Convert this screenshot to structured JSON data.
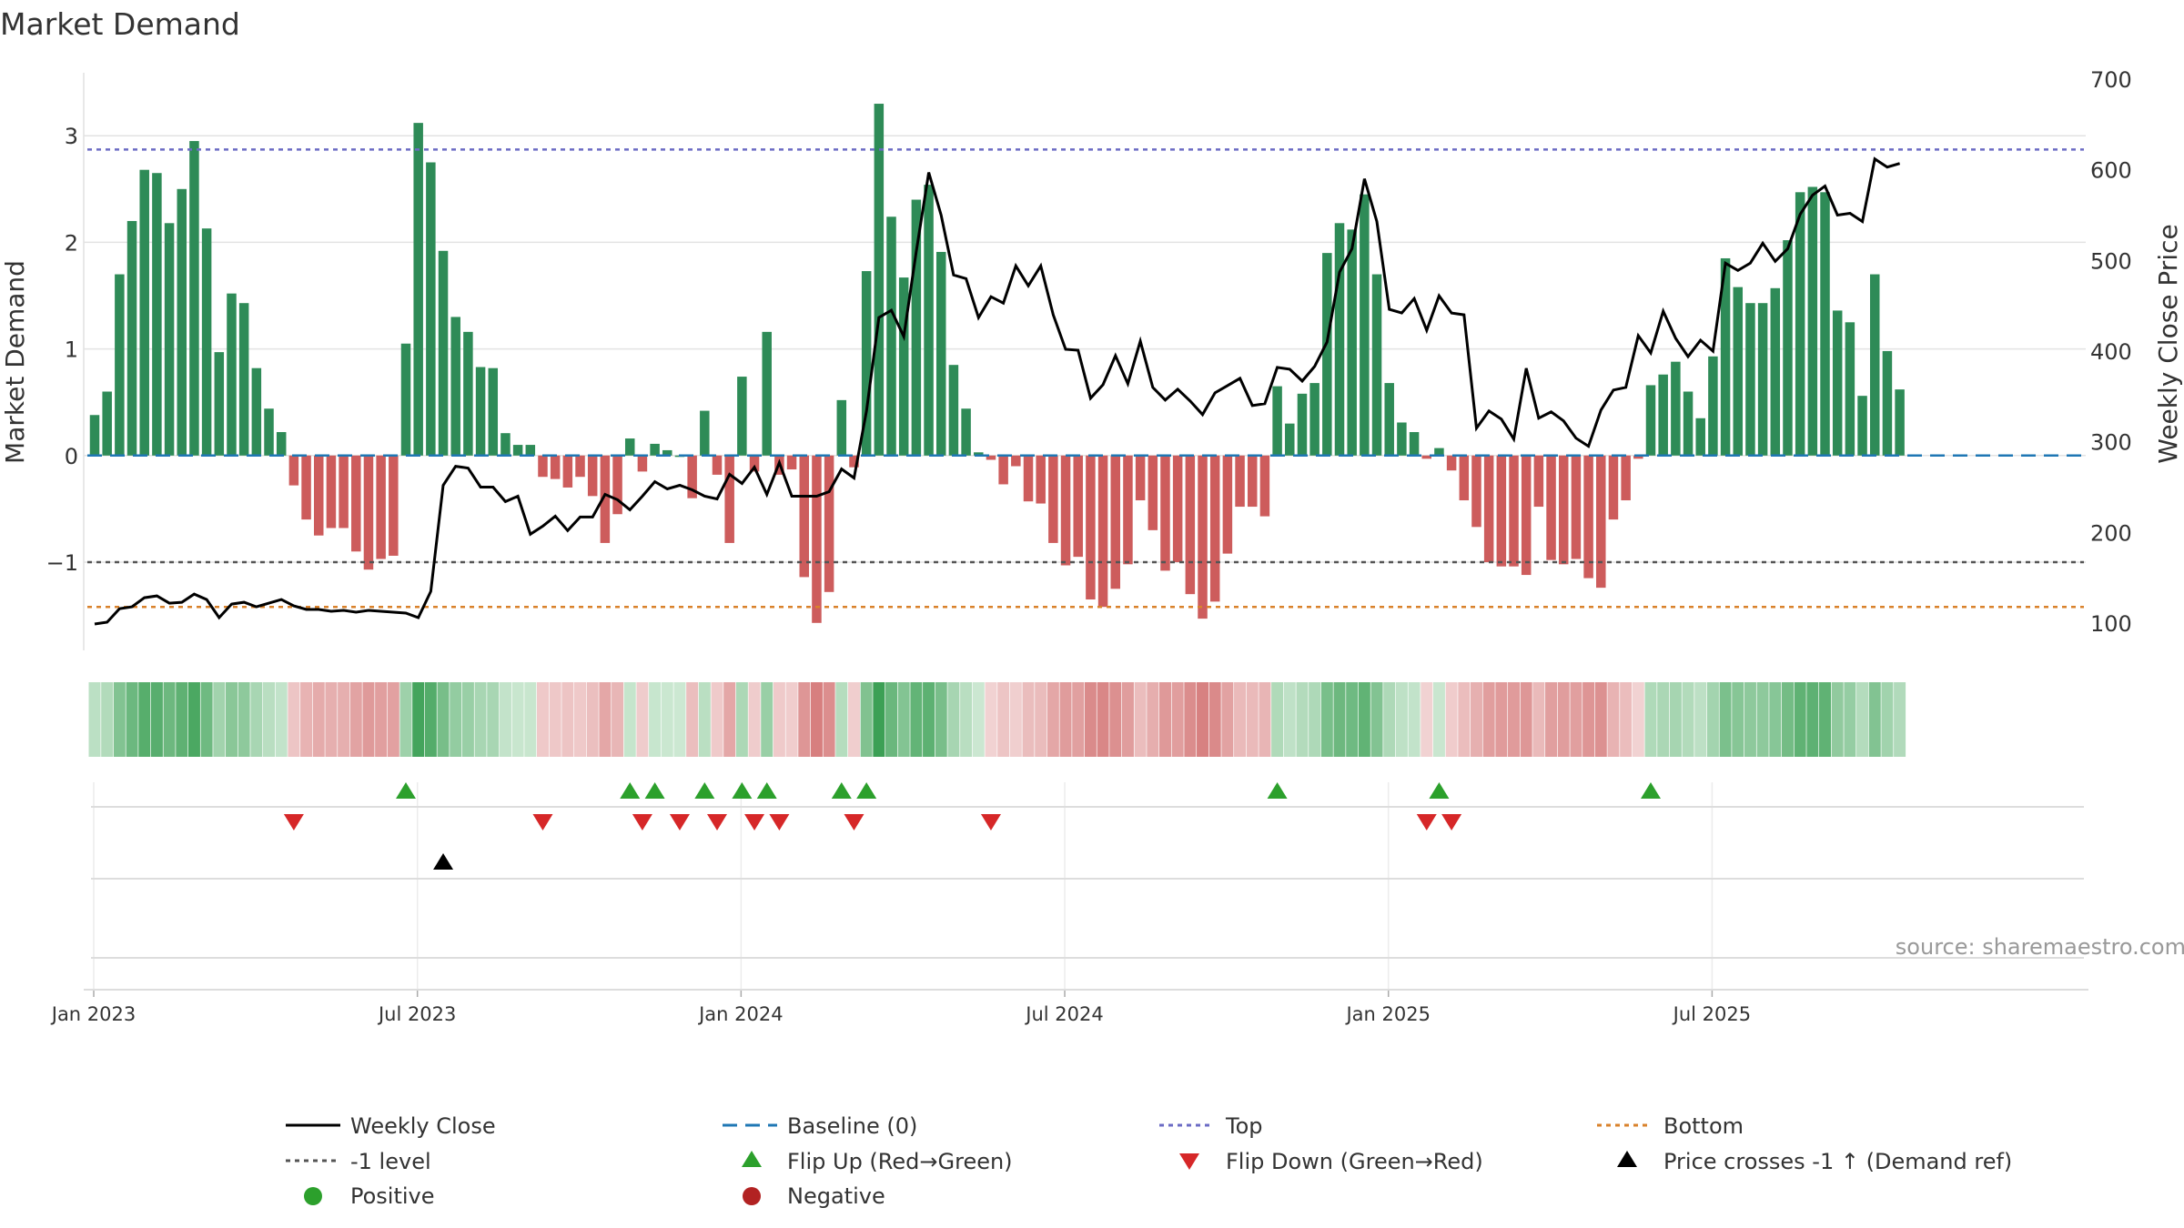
{
  "chart_data": {
    "type": "bar",
    "title": "Market Demand",
    "ylabel_left": "Market Demand",
    "ylabel_right": "Weekly Close Price",
    "source": "source: sharemaestro.com",
    "y_left_ticks": [
      "−1",
      "0",
      "1",
      "2",
      "3"
    ],
    "y_left_tick_values": [
      -1,
      0,
      1,
      2,
      3
    ],
    "y_right_ticks": [
      "100",
      "200",
      "300",
      "400",
      "500",
      "600",
      "700"
    ],
    "y_right_tick_values": [
      100,
      200,
      300,
      400,
      500,
      600,
      700
    ],
    "ylim_left": [
      -1.82,
      3.6
    ],
    "ylim_right": [
      85,
      705
    ],
    "x_ticks": [
      "Jan 2023",
      "Jul 2023",
      "Jan 2024",
      "Jul 2024",
      "Jan 2025",
      "Jul 2025"
    ],
    "x_tick_weeks": [
      0,
      26,
      52,
      78,
      104,
      130
    ],
    "levels": {
      "top": 2.87,
      "minus_one": -1.0,
      "bottom": -1.42,
      "baseline": 0
    },
    "demand": [
      0.38,
      0.6,
      1.7,
      2.2,
      2.68,
      2.65,
      2.18,
      2.5,
      2.95,
      2.13,
      0.97,
      1.52,
      1.43,
      0.82,
      0.44,
      0.22,
      -0.28,
      -0.6,
      -0.75,
      -0.68,
      -0.68,
      -0.9,
      -1.07,
      -0.97,
      -0.94,
      1.05,
      3.12,
      2.75,
      1.92,
      1.3,
      1.16,
      0.83,
      0.82,
      0.21,
      0.1,
      0.1,
      -0.2,
      -0.22,
      -0.3,
      -0.2,
      -0.38,
      -0.82,
      -0.55,
      0.16,
      -0.15,
      0.11,
      0.05,
      0.0,
      -0.4,
      0.42,
      -0.18,
      -0.82,
      0.74,
      -0.15,
      1.16,
      -0.18,
      -0.13,
      -1.14,
      -1.57,
      -1.28,
      0.52,
      -0.11,
      1.73,
      3.3,
      2.24,
      1.67,
      2.4,
      2.54,
      1.91,
      0.85,
      0.44,
      0.03,
      -0.04,
      -0.27,
      -0.1,
      -0.43,
      -0.45,
      -0.82,
      -1.03,
      -0.95,
      -1.35,
      -1.42,
      -1.25,
      -1.02,
      -0.42,
      -0.7,
      -1.08,
      -1.0,
      -1.3,
      -1.53,
      -1.37,
      -0.92,
      -0.48,
      -0.48,
      -0.57,
      0.65,
      0.3,
      0.58,
      0.68,
      1.9,
      2.18,
      2.12,
      2.45,
      1.7,
      0.68,
      0.31,
      0.22,
      -0.03,
      0.07,
      -0.14,
      -0.42,
      -0.67,
      -1.0,
      -1.04,
      -1.04,
      -1.12,
      -0.48,
      -0.98,
      -1.02,
      -0.97,
      -1.15,
      -1.24,
      -0.6,
      -0.42,
      -0.03,
      0.66,
      0.76,
      0.88,
      0.6,
      0.35,
      0.93,
      1.85,
      1.58,
      1.43,
      1.43,
      1.57,
      2.02,
      2.47,
      2.52,
      2.47,
      1.36,
      1.25,
      0.56,
      1.7,
      0.98,
      0.62
    ],
    "price": [
      99,
      101,
      116,
      118,
      128,
      130,
      122,
      123,
      132,
      126,
      106,
      121,
      123,
      118,
      122,
      126,
      119,
      115,
      115,
      113,
      114,
      112,
      114,
      113,
      112,
      111,
      106,
      135,
      252,
      273,
      271,
      250,
      250,
      234,
      240,
      198,
      207,
      218,
      202,
      217,
      217,
      242,
      236,
      225,
      240,
      256,
      248,
      252,
      247,
      240,
      237,
      264,
      254,
      272,
      242,
      277,
      240,
      240,
      240,
      245,
      270,
      260,
      334,
      437,
      445,
      416,
      510,
      597,
      550,
      484,
      480,
      437,
      460,
      453,
      494,
      472,
      494,
      440,
      402,
      401,
      348,
      363,
      395,
      364,
      411,
      360,
      346,
      358,
      345,
      330,
      354,
      362,
      370,
      340,
      342,
      382,
      380,
      367,
      383,
      410,
      487,
      513,
      590,
      543,
      446,
      442,
      458,
      423,
      461,
      442,
      440,
      315,
      334,
      325,
      303,
      381,
      326,
      333,
      323,
      304,
      295,
      335,
      357,
      360,
      417,
      398,
      444,
      414,
      394,
      412,
      400,
      497,
      489,
      497,
      519,
      499,
      513,
      551,
      572,
      582,
      550,
      552,
      543,
      612,
      603,
      607
    ],
    "strip_color": "#ffffff"
  },
  "colors": {
    "positive": "#2e8b57",
    "negative": "#cd5c5c",
    "price_line": "#000000",
    "baseline": "#1f77b4",
    "top": "#6b6bc4",
    "minus_one": "#555555",
    "bottom": "#d9822b",
    "flip_up": "#2ca02c",
    "flip_down": "#d62728",
    "cross": "#000000",
    "grid": "#e3e3e3"
  },
  "legend": {
    "weekly_close": "Weekly Close",
    "baseline": "Baseline (0)",
    "top": "Top",
    "bottom": "Bottom",
    "minus_one": "-1 level",
    "flip_up": "Flip Up (Red→Green)",
    "flip_down": "Flip Down (Green→Red)",
    "price_cross": "Price crosses -1 ↑ (Demand ref)",
    "positive": "Positive",
    "negative": "Negative"
  }
}
